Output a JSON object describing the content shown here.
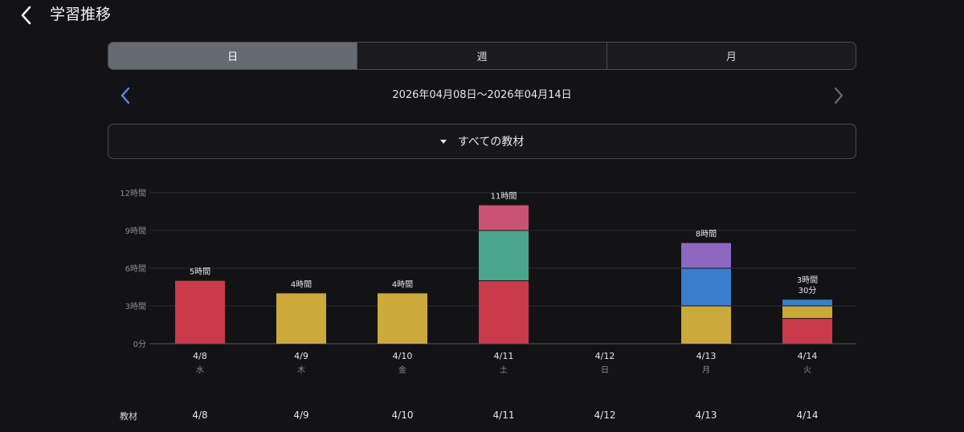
{
  "header": {
    "title": "学習推移"
  },
  "tabs": [
    {
      "label": "日",
      "selected": true
    },
    {
      "label": "週",
      "selected": false
    },
    {
      "label": "月",
      "selected": false
    }
  ],
  "date_range": "2026年04月08日〜2026年04月14日",
  "filter": {
    "label": "すべての教材"
  },
  "colors": {
    "red": "#c93a4a",
    "yellow": "#cba93a",
    "teal": "#4aa68c",
    "pink": "#c95370",
    "blue": "#3a7ecb",
    "purple": "#8e67c0"
  },
  "chart_data": {
    "type": "bar",
    "stacked": true,
    "ylim": [
      0,
      12
    ],
    "y_ticks": [
      {
        "value": 0,
        "label": "0分"
      },
      {
        "value": 3,
        "label": "3時間"
      },
      {
        "value": 6,
        "label": "6時間"
      },
      {
        "value": 9,
        "label": "9時間"
      },
      {
        "value": 12,
        "label": "12時間"
      }
    ],
    "grid": true,
    "categories": [
      {
        "date": "4/8",
        "weekday": "水",
        "total_label": [
          "5時間"
        ],
        "segments": [
          {
            "value": 5,
            "color": "#c93a4a"
          }
        ]
      },
      {
        "date": "4/9",
        "weekday": "木",
        "total_label": [
          "4時間"
        ],
        "segments": [
          {
            "value": 4,
            "color": "#cba93a"
          }
        ]
      },
      {
        "date": "4/10",
        "weekday": "金",
        "total_label": [
          "4時間"
        ],
        "segments": [
          {
            "value": 4,
            "color": "#cba93a"
          }
        ]
      },
      {
        "date": "4/11",
        "weekday": "土",
        "total_label": [
          "11時間"
        ],
        "segments": [
          {
            "value": 5,
            "color": "#c93a4a"
          },
          {
            "value": 4,
            "color": "#4aa68c"
          },
          {
            "value": 2,
            "color": "#c95370"
          }
        ]
      },
      {
        "date": "4/12",
        "weekday": "日",
        "total_label": [],
        "segments": []
      },
      {
        "date": "4/13",
        "weekday": "月",
        "total_label": [
          "8時間"
        ],
        "segments": [
          {
            "value": 3,
            "color": "#cba93a"
          },
          {
            "value": 3,
            "color": "#3a7ecb"
          },
          {
            "value": 2,
            "color": "#8e67c0"
          }
        ]
      },
      {
        "date": "4/14",
        "weekday": "火",
        "total_label": [
          "3時間",
          "30分"
        ],
        "segments": [
          {
            "value": 2,
            "color": "#c93a4a"
          },
          {
            "value": 1,
            "color": "#cba93a"
          },
          {
            "value": 0.5,
            "color": "#3a7ecb"
          }
        ]
      }
    ]
  },
  "table": {
    "label": "教材",
    "dates": [
      "4/8",
      "4/9",
      "4/10",
      "4/11",
      "4/12",
      "4/13",
      "4/14"
    ]
  }
}
